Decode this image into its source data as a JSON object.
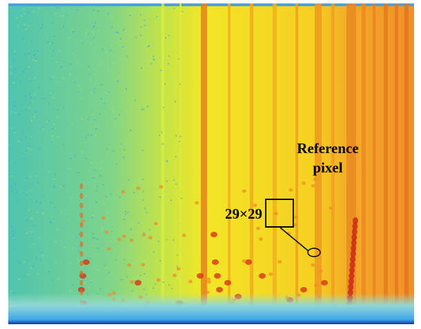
{
  "annotations": {
    "reference": [
      "Reference",
      "pixel"
    ],
    "window": "29×29"
  }
}
